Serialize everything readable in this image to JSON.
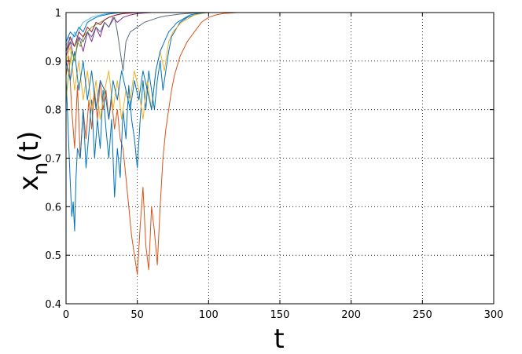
{
  "chart_data": {
    "type": "line",
    "title": "",
    "xlabel": "t",
    "ylabel_main": "x",
    "ylabel_sub": "n",
    "ylabel_tail": "(t)",
    "xlim": [
      0,
      300
    ],
    "ylim": [
      0.4,
      1.0
    ],
    "xticks": [
      0,
      50,
      100,
      150,
      200,
      250,
      300
    ],
    "yticks": [
      0.4,
      0.5,
      0.6,
      0.7,
      0.8,
      0.9,
      1.0
    ],
    "xtick_labels": [
      "0",
      "50",
      "100",
      "150",
      "200",
      "250",
      "300"
    ],
    "ytick_labels": [
      "0.4",
      "0.5",
      "0.6",
      "0.7",
      "0.8",
      "0.9",
      "1"
    ],
    "grid": true,
    "series": [
      {
        "color": "#d95319",
        "x": [
          0,
          2,
          4,
          6,
          8,
          10,
          12,
          14,
          16,
          18,
          20,
          22,
          24,
          26,
          28,
          30,
          32,
          34,
          36,
          38,
          40,
          42,
          44,
          46,
          48,
          50,
          52,
          54,
          56,
          58,
          60,
          62,
          64,
          66,
          68,
          70,
          72,
          74,
          76,
          78,
          80,
          85,
          90,
          95,
          100,
          105,
          110,
          115,
          120,
          300
        ],
        "y": [
          0.87,
          0.91,
          0.8,
          0.72,
          0.85,
          0.7,
          0.8,
          0.74,
          0.82,
          0.76,
          0.84,
          0.78,
          0.86,
          0.8,
          0.84,
          0.78,
          0.82,
          0.76,
          0.8,
          0.74,
          0.72,
          0.66,
          0.6,
          0.54,
          0.5,
          0.46,
          0.56,
          0.64,
          0.52,
          0.47,
          0.6,
          0.55,
          0.48,
          0.6,
          0.7,
          0.76,
          0.8,
          0.84,
          0.87,
          0.89,
          0.91,
          0.94,
          0.96,
          0.98,
          0.99,
          0.995,
          0.998,
          0.999,
          1.0,
          1.0
        ]
      },
      {
        "color": "#0072bd",
        "x": [
          0,
          1,
          2,
          3,
          4,
          5,
          6,
          7,
          8,
          10,
          12,
          14,
          16,
          18,
          20,
          22,
          24,
          26,
          28,
          30,
          32,
          34,
          36,
          38,
          40,
          42,
          44,
          46,
          48,
          50,
          52,
          54,
          56,
          58,
          60,
          62,
          64,
          66,
          68,
          70,
          72,
          74,
          76,
          78,
          80,
          85,
          90,
          95,
          100,
          300
        ],
        "y": [
          0.86,
          0.8,
          0.72,
          0.65,
          0.58,
          0.61,
          0.55,
          0.66,
          0.72,
          0.7,
          0.8,
          0.68,
          0.75,
          0.82,
          0.7,
          0.78,
          0.72,
          0.84,
          0.76,
          0.7,
          0.78,
          0.62,
          0.72,
          0.66,
          0.8,
          0.74,
          0.85,
          0.78,
          0.74,
          0.68,
          0.78,
          0.86,
          0.8,
          0.88,
          0.84,
          0.8,
          0.86,
          0.9,
          0.84,
          0.88,
          0.92,
          0.95,
          0.96,
          0.97,
          0.98,
          0.99,
          0.995,
          0.999,
          1.0,
          1.0
        ]
      },
      {
        "color": "#edb120",
        "x": [
          0,
          3,
          6,
          9,
          12,
          15,
          18,
          21,
          24,
          27,
          30,
          33,
          36,
          39,
          42,
          45,
          48,
          51,
          54,
          57,
          60,
          63,
          66,
          69,
          72,
          75,
          78,
          81,
          84,
          87,
          90,
          95,
          100,
          105,
          300
        ],
        "y": [
          0.9,
          0.93,
          0.84,
          0.9,
          0.82,
          0.88,
          0.8,
          0.86,
          0.78,
          0.84,
          0.88,
          0.8,
          0.86,
          0.78,
          0.84,
          0.82,
          0.88,
          0.84,
          0.78,
          0.86,
          0.8,
          0.88,
          0.92,
          0.88,
          0.94,
          0.96,
          0.97,
          0.98,
          0.985,
          0.99,
          0.995,
          0.998,
          1.0,
          1.0,
          1.0
        ]
      },
      {
        "color": "#0072bd",
        "x": [
          0,
          3,
          6,
          9,
          12,
          15,
          18,
          21,
          24,
          27,
          30,
          33,
          36,
          39,
          42,
          45,
          48,
          51,
          54,
          57,
          60,
          63,
          66,
          69,
          72,
          75,
          78,
          81,
          84,
          87,
          90,
          95,
          100,
          105,
          110,
          300
        ],
        "y": [
          0.9,
          0.86,
          0.92,
          0.84,
          0.9,
          0.82,
          0.88,
          0.8,
          0.86,
          0.84,
          0.78,
          0.86,
          0.82,
          0.88,
          0.84,
          0.8,
          0.86,
          0.82,
          0.88,
          0.84,
          0.8,
          0.88,
          0.92,
          0.94,
          0.96,
          0.97,
          0.98,
          0.985,
          0.99,
          0.995,
          0.997,
          0.999,
          1.0,
          1.0,
          1.0,
          1.0
        ]
      },
      {
        "color": "#7e2f8e",
        "x": [
          0,
          3,
          6,
          9,
          12,
          15,
          18,
          21,
          24,
          27,
          30,
          33,
          36,
          40,
          45,
          50,
          55,
          60,
          65,
          70,
          300
        ],
        "y": [
          0.91,
          0.94,
          0.9,
          0.95,
          0.92,
          0.96,
          0.94,
          0.97,
          0.95,
          0.98,
          0.97,
          0.99,
          0.98,
          0.99,
          0.995,
          0.998,
          0.999,
          1.0,
          1.0,
          1.0,
          1.0
        ]
      },
      {
        "color": "#77ac30",
        "x": [
          0,
          2,
          4,
          6,
          8,
          10,
          12,
          15,
          18,
          21,
          24,
          27,
          30,
          35,
          40,
          45,
          50,
          55,
          300
        ],
        "y": [
          0.82,
          0.88,
          0.92,
          0.9,
          0.94,
          0.93,
          0.95,
          0.96,
          0.97,
          0.975,
          0.98,
          0.985,
          0.99,
          0.995,
          0.998,
          0.999,
          1.0,
          1.0,
          1.0
        ]
      },
      {
        "color": "#4dbeee",
        "x": [
          0,
          2,
          4,
          6,
          8,
          10,
          12,
          15,
          18,
          21,
          24,
          27,
          30,
          35,
          40,
          45,
          50,
          300
        ],
        "y": [
          0.93,
          0.95,
          0.94,
          0.96,
          0.95,
          0.97,
          0.98,
          0.985,
          0.99,
          0.993,
          0.995,
          0.997,
          0.998,
          0.999,
          1.0,
          1.0,
          1.0,
          1.0
        ]
      },
      {
        "color": "#a2142f",
        "x": [
          0,
          3,
          6,
          9,
          12,
          15,
          18,
          21,
          24,
          27,
          30,
          35,
          40,
          45,
          50,
          55,
          60,
          300
        ],
        "y": [
          0.92,
          0.95,
          0.93,
          0.96,
          0.95,
          0.97,
          0.96,
          0.98,
          0.975,
          0.985,
          0.99,
          0.995,
          0.998,
          0.999,
          1.0,
          1.0,
          1.0,
          1.0
        ]
      },
      {
        "color": "#5a6b7a",
        "x": [
          0,
          3,
          6,
          9,
          12,
          15,
          18,
          21,
          24,
          27,
          30,
          33,
          34,
          36,
          38,
          40,
          42,
          45,
          50,
          55,
          60,
          65,
          70,
          75,
          80,
          85,
          90,
          95,
          100,
          300
        ],
        "y": [
          0.92,
          0.94,
          0.93,
          0.95,
          0.94,
          0.96,
          0.95,
          0.97,
          0.96,
          0.98,
          0.97,
          0.985,
          0.99,
          0.96,
          0.92,
          0.88,
          0.94,
          0.96,
          0.97,
          0.98,
          0.985,
          0.99,
          0.993,
          0.995,
          0.997,
          0.998,
          0.999,
          1.0,
          1.0,
          1.0
        ]
      },
      {
        "color": "#0072bd",
        "x": [
          0,
          3,
          6,
          9,
          12,
          15,
          18,
          21,
          24,
          27,
          30,
          35,
          40,
          45,
          50,
          300
        ],
        "y": [
          0.94,
          0.96,
          0.95,
          0.97,
          0.96,
          0.98,
          0.985,
          0.99,
          0.993,
          0.995,
          0.997,
          0.999,
          1.0,
          1.0,
          1.0,
          1.0
        ]
      }
    ]
  }
}
